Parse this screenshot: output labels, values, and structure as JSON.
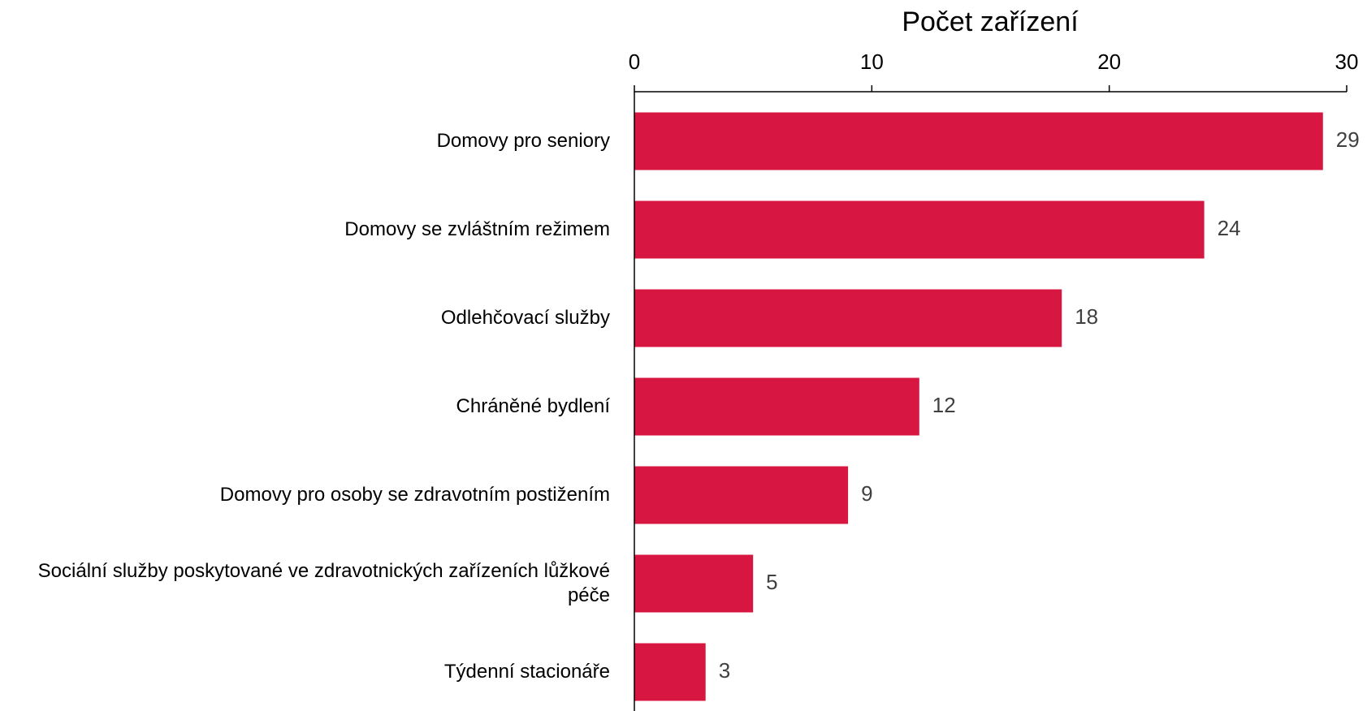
{
  "chart_data": {
    "type": "bar",
    "orientation": "horizontal",
    "xlabel": "Počet zařízení",
    "categories": [
      "Domovy pro seniory",
      "Domovy se zvláštním režimem",
      "Odlehčovací služby",
      "Chráněné bydlení",
      "Domovy pro osoby se zdravotním postižením",
      "Sociální služby poskytované ve zdravotnických zařízeních lůžkové péče",
      "Týdenní stacionáře"
    ],
    "values": [
      29,
      24,
      18,
      12,
      9,
      5,
      3
    ],
    "color": "#d81642",
    "xlim": [
      0,
      30
    ],
    "xticks": [
      0,
      10,
      20,
      30
    ],
    "grid": false
  }
}
